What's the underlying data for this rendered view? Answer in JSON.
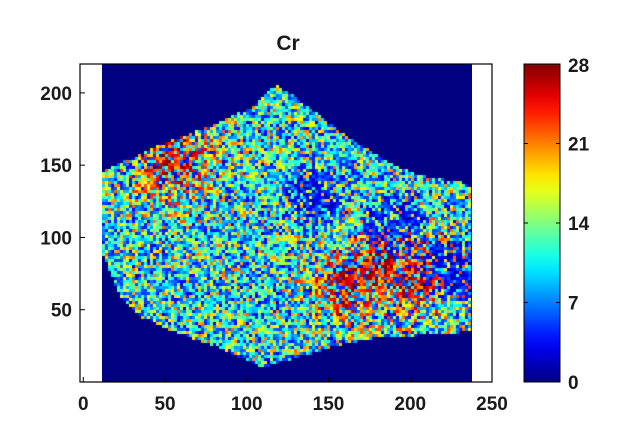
{
  "chart_data": {
    "type": "heatmap",
    "title": "Cr",
    "xlabel": "",
    "ylabel": "",
    "xlim": [
      -2,
      250
    ],
    "ylim": [
      0,
      220
    ],
    "x_ticks": [
      0,
      50,
      100,
      150,
      200,
      250
    ],
    "y_ticks": [
      50,
      100,
      150,
      200
    ],
    "colorbar": {
      "min": 0,
      "max": 28,
      "ticks": [
        0,
        7,
        14,
        21,
        28
      ],
      "colormap": "jet"
    },
    "background_value": 0,
    "region_outline": [
      [
        5,
        120
      ],
      [
        10,
        145
      ],
      [
        30,
        155
      ],
      [
        45,
        163
      ],
      [
        80,
        178
      ],
      [
        103,
        190
      ],
      [
        112,
        200
      ],
      [
        118,
        205
      ],
      [
        126,
        200
      ],
      [
        138,
        190
      ],
      [
        155,
        175
      ],
      [
        175,
        160
      ],
      [
        190,
        150
      ],
      [
        205,
        143
      ],
      [
        222,
        140
      ],
      [
        232,
        138
      ],
      [
        238,
        135
      ],
      [
        237,
        35
      ],
      [
        220,
        33
      ],
      [
        200,
        32
      ],
      [
        175,
        30
      ],
      [
        155,
        25
      ],
      [
        140,
        20
      ],
      [
        125,
        15
      ],
      [
        110,
        10
      ],
      [
        100,
        15
      ],
      [
        80,
        25
      ],
      [
        55,
        35
      ],
      [
        35,
        45
      ],
      [
        22,
        60
      ],
      [
        15,
        80
      ],
      [
        8,
        100
      ]
    ],
    "hotspots": [
      {
        "x": 55,
        "y": 155,
        "level": 24
      },
      {
        "x": 160,
        "y": 70,
        "level": 22
      },
      {
        "x": 180,
        "y": 80,
        "level": 23
      },
      {
        "x": 200,
        "y": 75,
        "level": 21
      }
    ],
    "low_zones": [
      {
        "x": 140,
        "y": 130,
        "level": 4
      },
      {
        "x": 190,
        "y": 110,
        "level": 5
      },
      {
        "x": 225,
        "y": 80,
        "level": 4
      }
    ]
  }
}
